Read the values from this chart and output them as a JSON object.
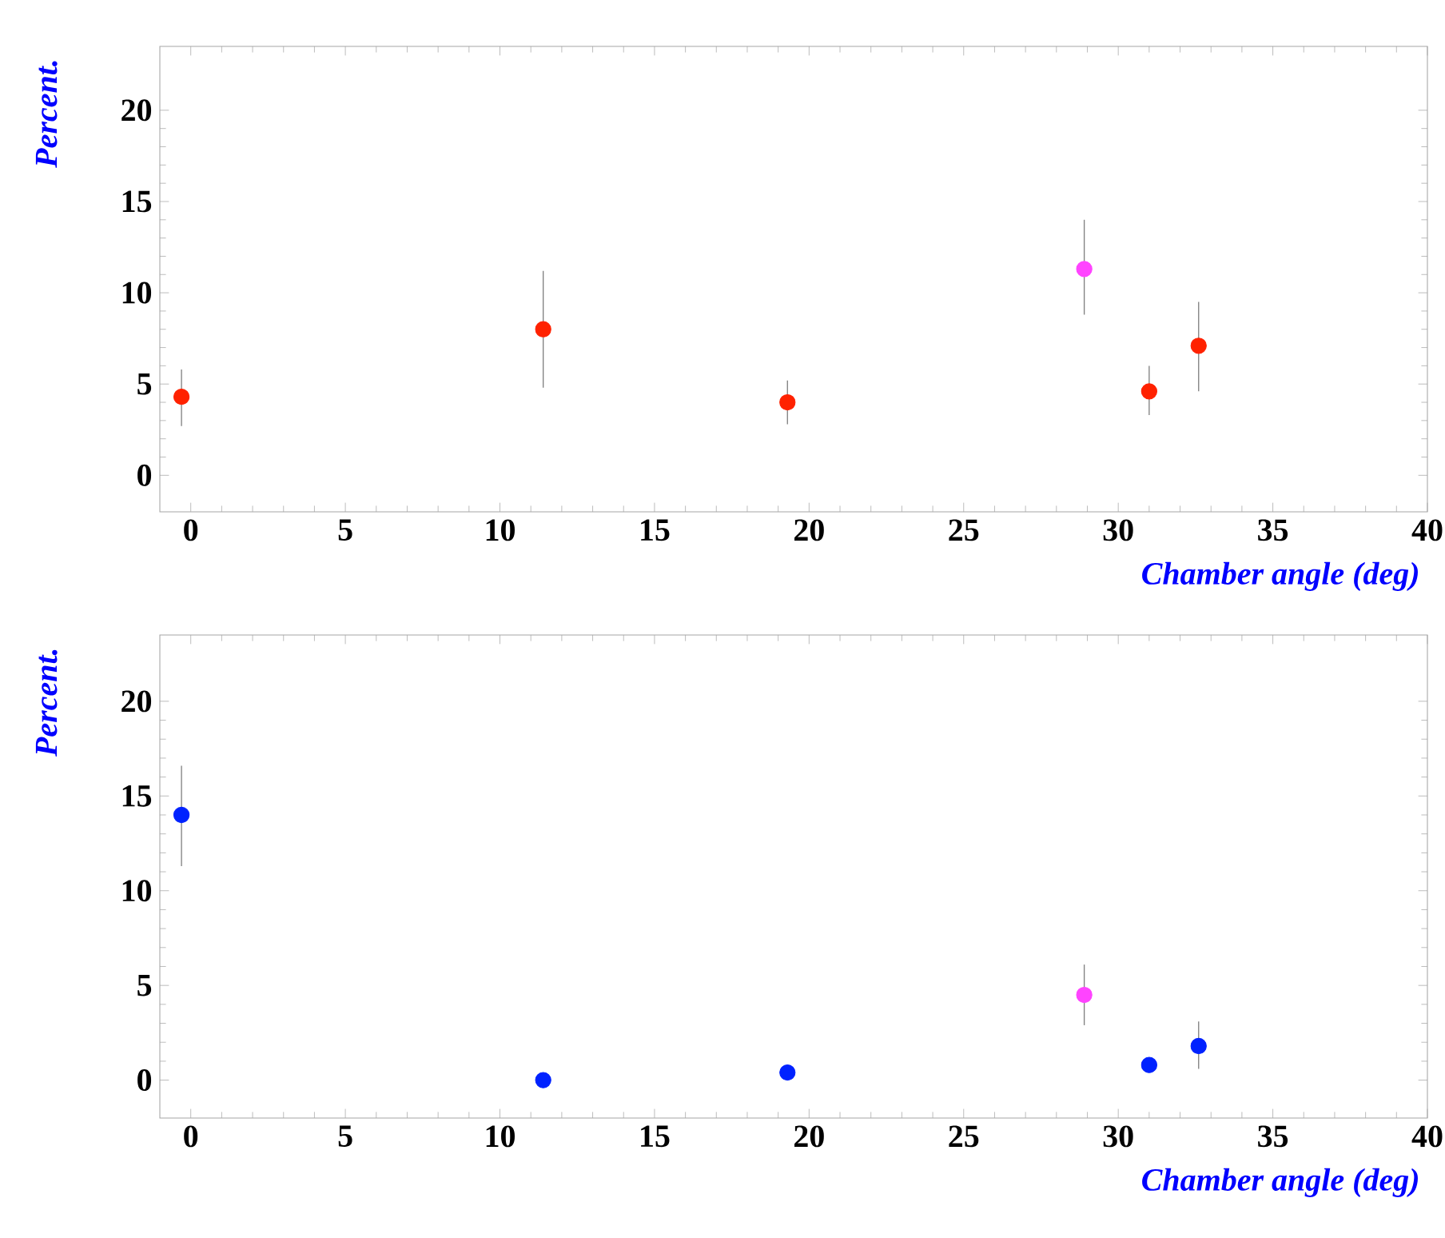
{
  "chart_data": [
    {
      "type": "scatter",
      "xlabel": "Chamber angle (deg)",
      "ylabel": "Percent.",
      "x": [
        -0.3,
        11.4,
        19.3,
        28.9,
        31.0,
        32.6
      ],
      "values": [
        4.3,
        8.0,
        4.0,
        11.3,
        4.6,
        7.1
      ],
      "errors": [
        [
          2.7,
          5.8
        ],
        [
          4.8,
          11.2
        ],
        [
          2.8,
          5.2
        ],
        [
          8.8,
          14.0
        ],
        [
          3.3,
          6.0
        ],
        [
          4.6,
          9.5
        ]
      ],
      "colors": [
        "#ff2200",
        "#ff2200",
        "#ff2200",
        "#ff44ff",
        "#ff2200",
        "#ff2200"
      ],
      "xlim": [
        -1,
        40
      ],
      "ylim": [
        -2,
        23.5
      ],
      "xticks": [
        0,
        5,
        10,
        15,
        20,
        25,
        30,
        35,
        40
      ],
      "yticks": [
        0,
        5,
        10,
        15,
        20
      ],
      "marker": "circle",
      "grid": false
    },
    {
      "type": "scatter",
      "xlabel": "Chamber angle (deg)",
      "ylabel": "Percent.",
      "x": [
        -0.3,
        11.4,
        19.3,
        28.9,
        31.0,
        32.6
      ],
      "values": [
        14.0,
        0.0,
        0.4,
        4.5,
        0.8,
        1.8
      ],
      "errors": [
        [
          11.3,
          16.6
        ],
        null,
        null,
        [
          2.9,
          6.1
        ],
        null,
        [
          0.6,
          3.1
        ]
      ],
      "colors": [
        "#0022ff",
        "#0022ff",
        "#0022ff",
        "#ff44ff",
        "#0022ff",
        "#0022ff"
      ],
      "xlim": [
        -1,
        40
      ],
      "ylim": [
        -2,
        23.5
      ],
      "xticks": [
        0,
        5,
        10,
        15,
        20,
        25,
        30,
        35,
        40
      ],
      "yticks": [
        0,
        5,
        10,
        15,
        20
      ],
      "marker": "circle",
      "grid": false
    }
  ]
}
